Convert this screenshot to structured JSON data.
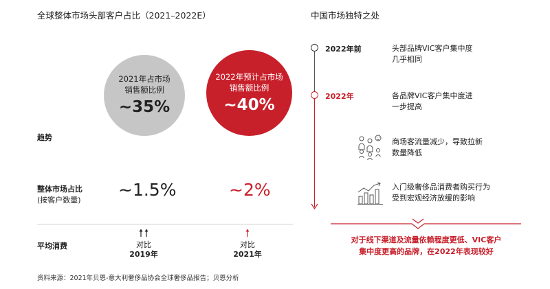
{
  "left": {
    "title": "全球整体市场头部客户占比（2021–2022E）",
    "circle_2021": {
      "caption_line1": "2021年占市场",
      "caption_line2": "销售额比例",
      "value": "~35%"
    },
    "circle_2022": {
      "caption_line1": "2022年预计占市场",
      "caption_line2": "销售额比例",
      "value": "~40%"
    },
    "row_trend": {
      "label": "趋势"
    },
    "row_share": {
      "label": "整体市场占比",
      "sublabel": "(按客户数量)",
      "value_2021": "~1.5%",
      "value_2022": "~2%"
    },
    "row_spend": {
      "label": "平均消费",
      "vs_2019": {
        "line1": "对比",
        "line2": "2019年"
      },
      "vs_2021": {
        "line1": "对比",
        "line2": "2021年"
      }
    },
    "footnote": "资料来源：2021年贝恩-意大利奢侈品协会全球奢侈品报告；贝恩分析"
  },
  "right": {
    "title": "中国市场独特之处",
    "items": [
      {
        "year": "2022年前",
        "line1": "头部品牌VIC客户集中度",
        "line2": "几乎相同"
      },
      {
        "year": "2022年",
        "line1": "各品牌VIC客户集中度进",
        "line2": "一步提高"
      }
    ],
    "points": [
      {
        "icon": "crowd-icon",
        "line1": "商场客流量减少，导致拉新",
        "line2": "数量降低"
      },
      {
        "icon": "trend-chart-icon",
        "line1": "入门级奢侈品消费者购买行为",
        "line2": "受到宏观经济放缓的影响"
      }
    ],
    "conclusion": {
      "line1": "对于线下渠道及流量依赖程度更低、VIC客户",
      "line2": "集中度更高的品牌，在2022年表现较好"
    }
  },
  "colors": {
    "accent_red": "#c8202b",
    "circle_gray": "#c6c6c6",
    "text": "#222222",
    "rule_gray": "#cfcfcf"
  }
}
